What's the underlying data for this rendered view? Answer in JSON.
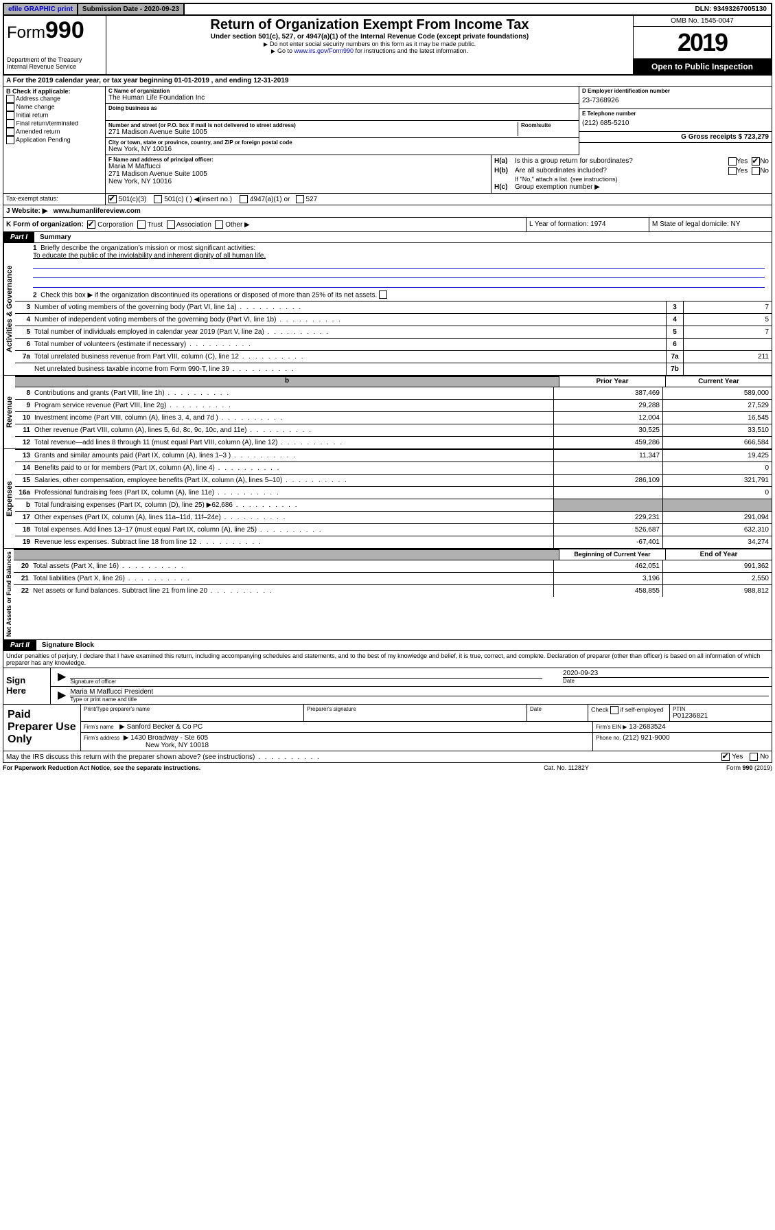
{
  "top_bar": {
    "efile": "efile GRAPHIC print",
    "sub_date_label": "Submission Date - 2020-09-23",
    "dln": "DLN: 93493267005130"
  },
  "header": {
    "form_label": "Form",
    "form_num": "990",
    "dept": "Department of the Treasury",
    "irs": "Internal Revenue Service",
    "title": "Return of Organization Exempt From Income Tax",
    "sub1": "Under section 501(c), 527, or 4947(a)(1) of the Internal Revenue Code (except private foundations)",
    "sub2": "Do not enter social security numbers on this form as it may be made public.",
    "sub3_pre": "Go to ",
    "sub3_link": "www.irs.gov/Form990",
    "sub3_post": " for instructions and the latest information.",
    "omb": "OMB No. 1545-0047",
    "year": "2019",
    "open": "Open to Public Inspection"
  },
  "row_a": "A For the 2019 calendar year, or tax year beginning 01-01-2019   , and ending 12-31-2019",
  "section_b": {
    "label": "B Check if applicable:",
    "opts": [
      "Address change",
      "Name change",
      "Initial return",
      "Final return/terminated",
      "Amended return",
      "Application Pending"
    ]
  },
  "section_c": {
    "name_label": "C Name of organization",
    "name": "The Human Life Foundation Inc",
    "dba_label": "Doing business as",
    "dba": "",
    "addr_label": "Number and street (or P.O. box if mail is not delivered to street address)",
    "room_label": "Room/suite",
    "addr": "271 Madison Avenue Suite 1005",
    "city_label": "City or town, state or province, country, and ZIP or foreign postal code",
    "city": "New York, NY  10016",
    "f_label": "F Name and address of principal officer:",
    "f_name": "Maria M Maffucci",
    "f_addr1": "271 Madison Avenue Suite 1005",
    "f_addr2": "New York, NY  10016"
  },
  "section_d": {
    "label": "D Employer identification number",
    "ein": "23-7368926",
    "e_label": "E Telephone number",
    "phone": "(212) 685-5210",
    "g_label": "G Gross receipts $ 723,279"
  },
  "section_h": {
    "ha": "Is this a group return for subordinates?",
    "hb": "Are all subordinates included?",
    "hb_note": "If \"No,\" attach a list. (see instructions)",
    "hc": "Group exemption number ▶",
    "yes": "Yes",
    "no": "No"
  },
  "section_i": {
    "label": "Tax-exempt status:",
    "o1": "501(c)(3)",
    "o2": "501(c) (  ) ◀(insert no.)",
    "o3": "4947(a)(1) or",
    "o4": "527"
  },
  "section_j": {
    "label": "J  Website: ▶",
    "url": "www.humanlifereview.com"
  },
  "section_k": {
    "label": "K Form of organization:",
    "o1": "Corporation",
    "o2": "Trust",
    "o3": "Association",
    "o4": "Other ▶",
    "l": "L Year of formation: 1974",
    "m": "M State of legal domicile: NY"
  },
  "part1": {
    "tab": "Part I",
    "title": "Summary",
    "q1": "Briefly describe the organization's mission or most significant activities:",
    "a1": "To educate the public of the inviolability and inherent dignity of all human life.",
    "q2": "Check this box ▶      if the organization discontinued its operations or disposed of more than 25% of its net assets.",
    "rows_gov": [
      {
        "n": "3",
        "t": "Number of voting members of the governing body (Part VI, line 1a)",
        "box": "3",
        "v": "7"
      },
      {
        "n": "4",
        "t": "Number of independent voting members of the governing body (Part VI, line 1b)",
        "box": "4",
        "v": "5"
      },
      {
        "n": "5",
        "t": "Total number of individuals employed in calendar year 2019 (Part V, line 2a)",
        "box": "5",
        "v": "7"
      },
      {
        "n": "6",
        "t": "Total number of volunteers (estimate if necessary)",
        "box": "6",
        "v": ""
      },
      {
        "n": "7a",
        "t": "Total unrelated business revenue from Part VIII, column (C), line 12",
        "box": "7a",
        "v": "211"
      },
      {
        "n": "",
        "t": "Net unrelated business taxable income from Form 990-T, line 39",
        "box": "7b",
        "v": ""
      }
    ],
    "hdr_prior": "Prior Year",
    "hdr_current": "Current Year",
    "rows_rev": [
      {
        "n": "8",
        "t": "Contributions and grants (Part VIII, line 1h)",
        "p": "387,469",
        "c": "589,000"
      },
      {
        "n": "9",
        "t": "Program service revenue (Part VIII, line 2g)",
        "p": "29,288",
        "c": "27,529"
      },
      {
        "n": "10",
        "t": "Investment income (Part VIII, column (A), lines 3, 4, and 7d )",
        "p": "12,004",
        "c": "16,545"
      },
      {
        "n": "11",
        "t": "Other revenue (Part VIII, column (A), lines 5, 6d, 8c, 9c, 10c, and 11e)",
        "p": "30,525",
        "c": "33,510"
      },
      {
        "n": "12",
        "t": "Total revenue—add lines 8 through 11 (must equal Part VIII, column (A), line 12)",
        "p": "459,286",
        "c": "666,584"
      }
    ],
    "rows_exp": [
      {
        "n": "13",
        "t": "Grants and similar amounts paid (Part IX, column (A), lines 1–3 )",
        "p": "11,347",
        "c": "19,425"
      },
      {
        "n": "14",
        "t": "Benefits paid to or for members (Part IX, column (A), line 4)",
        "p": "",
        "c": "0"
      },
      {
        "n": "15",
        "t": "Salaries, other compensation, employee benefits (Part IX, column (A), lines 5–10)",
        "p": "286,109",
        "c": "321,791"
      },
      {
        "n": "16a",
        "t": "Professional fundraising fees (Part IX, column (A), line 11e)",
        "p": "",
        "c": "0"
      },
      {
        "n": "b",
        "t": "Total fundraising expenses (Part IX, column (D), line 25) ▶62,686",
        "p": "shaded",
        "c": "shaded"
      },
      {
        "n": "17",
        "t": "Other expenses (Part IX, column (A), lines 11a–11d, 11f–24e)",
        "p": "229,231",
        "c": "291,094"
      },
      {
        "n": "18",
        "t": "Total expenses. Add lines 13–17 (must equal Part IX, column (A), line 25)",
        "p": "526,687",
        "c": "632,310"
      },
      {
        "n": "19",
        "t": "Revenue less expenses. Subtract line 18 from line 12",
        "p": "-67,401",
        "c": "34,274"
      }
    ],
    "hdr_begin": "Beginning of Current Year",
    "hdr_end": "End of Year",
    "rows_net": [
      {
        "n": "20",
        "t": "Total assets (Part X, line 16)",
        "p": "462,051",
        "c": "991,362"
      },
      {
        "n": "21",
        "t": "Total liabilities (Part X, line 26)",
        "p": "3,196",
        "c": "2,550"
      },
      {
        "n": "22",
        "t": "Net assets or fund balances. Subtract line 21 from line 20",
        "p": "458,855",
        "c": "988,812"
      }
    ],
    "vert_gov": "Activities & Governance",
    "vert_rev": "Revenue",
    "vert_exp": "Expenses",
    "vert_net": "Net Assets or Fund Balances"
  },
  "part2": {
    "tab": "Part II",
    "title": "Signature Block",
    "perjury": "Under penalties of perjury, I declare that I have examined this return, including accompanying schedules and statements, and to the best of my knowledge and belief, it is true, correct, and complete. Declaration of preparer (other than officer) is based on all information of which preparer has any knowledge."
  },
  "sign": {
    "label": "Sign Here",
    "sig_of_officer": "Signature of officer",
    "date": "2020-09-23",
    "date_lbl": "Date",
    "name": "Maria M Maffucci  President",
    "name_lbl": "Type or print name and title"
  },
  "paid": {
    "label": "Paid Preparer Use Only",
    "h1": "Print/Type preparer's name",
    "h2": "Preparer's signature",
    "h3": "Date",
    "h4_pre": "Check",
    "h4_post": "if self-employed",
    "h5": "PTIN",
    "ptin": "P01236821",
    "firm_name_lbl": "Firm's name",
    "firm_name": "Sanford Becker & Co PC",
    "firm_ein_lbl": "Firm's EIN ▶",
    "firm_ein": "13-2683524",
    "firm_addr_lbl": "Firm's address",
    "firm_addr1": "1430 Broadway - Ste 605",
    "firm_addr2": "New York, NY  10018",
    "phone_lbl": "Phone no.",
    "phone": "(212) 921-9000"
  },
  "discuss": {
    "q": "May the IRS discuss this return with the preparer shown above? (see instructions)",
    "yes": "Yes",
    "no": "No"
  },
  "footer": {
    "left": "For Paperwork Reduction Act Notice, see the separate instructions.",
    "mid": "Cat. No. 11282Y",
    "right": "Form 990 (2019)"
  }
}
